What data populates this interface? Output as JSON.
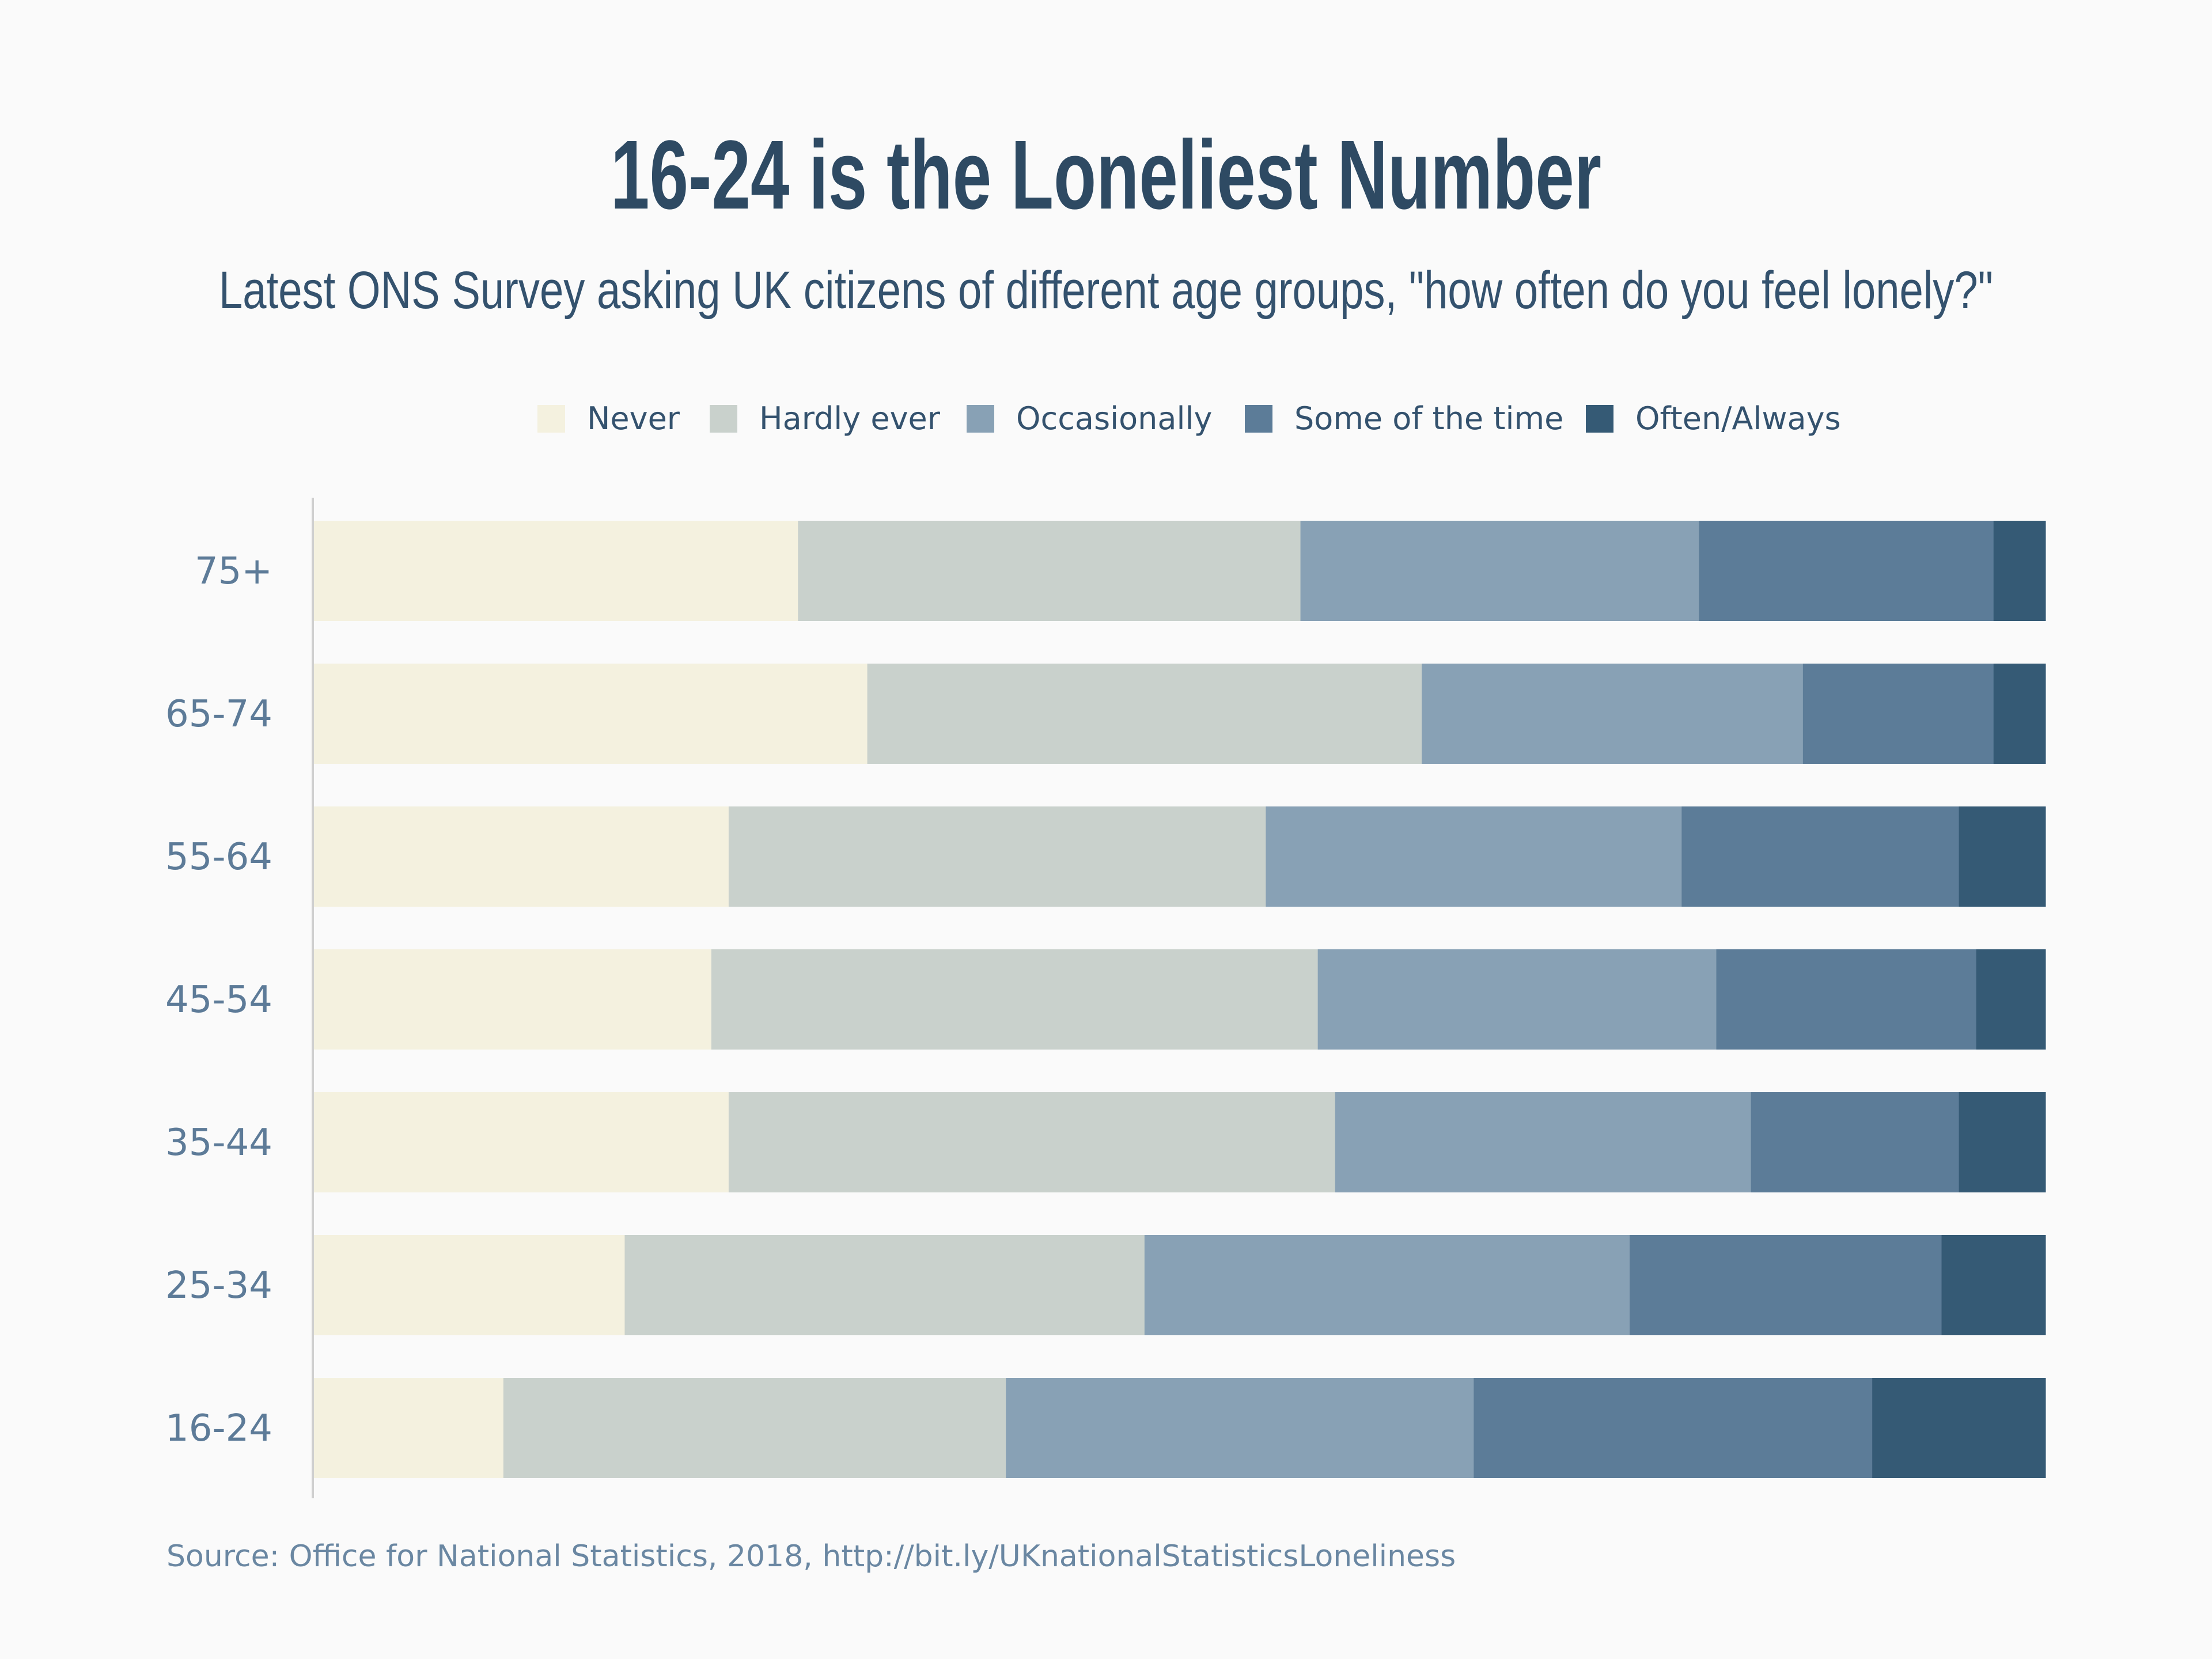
{
  "chart_data": {
    "type": "bar",
    "orientation": "horizontal",
    "stacked": "100%",
    "title": "16-24 is the Loneliest Number",
    "subtitle": "Latest ONS Survey asking UK citizens of  different age groups, \"how often do you feel lonely?\"",
    "categories": [
      "75+",
      "65-74",
      "55-64",
      "45-54",
      "35-44",
      "25-34",
      "16-24"
    ],
    "series": [
      {
        "name": "Never",
        "color": "#f4f1df",
        "values": [
          28,
          32,
          24,
          23,
          24,
          18,
          11
        ]
      },
      {
        "name": "Hardly ever",
        "color": "#c9d1cc",
        "values": [
          29,
          32,
          31,
          35,
          35,
          30,
          29
        ]
      },
      {
        "name": "Occasionally",
        "color": "#88a1b5",
        "values": [
          23,
          22,
          24,
          23,
          24,
          28,
          27
        ]
      },
      {
        "name": "Some of the time",
        "color": "#5c7c98",
        "values": [
          17,
          11,
          16,
          15,
          12,
          18,
          23
        ]
      },
      {
        "name": "Often/Always",
        "color": "#355a75",
        "values": [
          3,
          3,
          5,
          4,
          5,
          6,
          10
        ]
      }
    ],
    "xlim": [
      0,
      100
    ],
    "grid": false,
    "legend_position": "top",
    "source": "Source: Office for National Statistics, 2018, http://bit.ly/UKnationalStatisticsLoneliness"
  }
}
